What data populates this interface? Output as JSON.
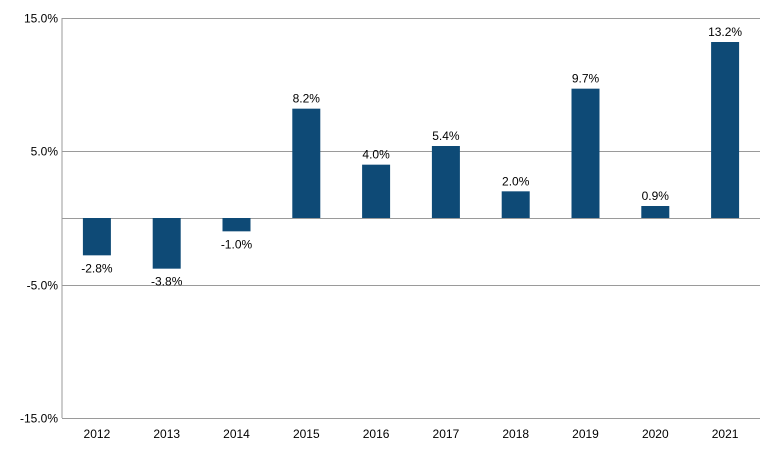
{
  "chart_data": {
    "type": "bar",
    "title": "",
    "xlabel": "",
    "ylabel": "",
    "categories": [
      "2012",
      "2013",
      "2014",
      "2015",
      "2016",
      "2017",
      "2018",
      "2019",
      "2020",
      "2021"
    ],
    "values": [
      -2.8,
      -3.8,
      -1.0,
      8.2,
      4.0,
      5.4,
      2.0,
      9.7,
      0.9,
      13.2
    ],
    "value_labels": [
      "-2.8%",
      "-3.8%",
      "-1.0%",
      "8.2%",
      "4.0%",
      "5.4%",
      "2.0%",
      "9.7%",
      "0.9%",
      "13.2%"
    ],
    "ylim": [
      -15,
      15
    ],
    "yticks": [
      15,
      5,
      -5,
      -15
    ],
    "ytick_labels": [
      "15.0%",
      "5.0%",
      "-5.0%",
      "-15.0%"
    ],
    "grid": true,
    "legend": "none",
    "colors": {
      "bar": "#0e4a76",
      "grid": "#9a9a9a",
      "axis": "#9a9a9a"
    }
  }
}
